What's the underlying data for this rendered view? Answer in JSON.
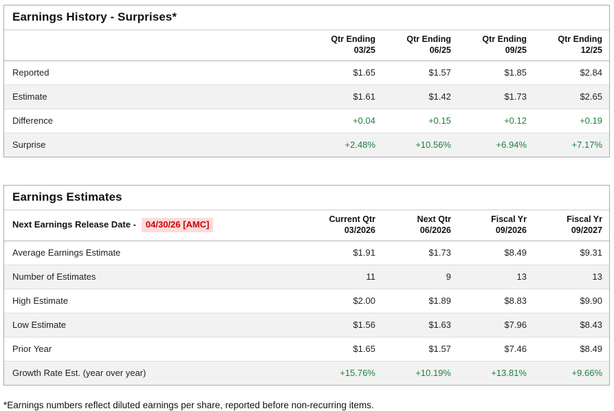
{
  "colors": {
    "positive_green": "#1e7e3e",
    "release_red": "#cc0000",
    "release_bg": "#fbdcdc",
    "alt_row_bg": "#f2f2f2",
    "panel_border": "#a9a9a9"
  },
  "earnings_history": {
    "title": "Earnings History - Surprises*",
    "columns": [
      {
        "line1": "Qtr Ending",
        "line2": "03/25"
      },
      {
        "line1": "Qtr Ending",
        "line2": "06/25"
      },
      {
        "line1": "Qtr Ending",
        "line2": "09/25"
      },
      {
        "line1": "Qtr Ending",
        "line2": "12/25"
      }
    ],
    "rows": [
      {
        "label": "Reported",
        "values": [
          "$1.65",
          "$1.57",
          "$1.85",
          "$2.84"
        ]
      },
      {
        "label": "Estimate",
        "values": [
          "$1.61",
          "$1.42",
          "$1.73",
          "$2.65"
        ]
      },
      {
        "label": "Difference",
        "values": [
          "+0.04",
          "+0.15",
          "+0.12",
          "+0.19"
        ]
      },
      {
        "label": "Surprise",
        "values": [
          "+2.48%",
          "+10.56%",
          "+6.94%",
          "+7.17%"
        ]
      }
    ]
  },
  "earnings_estimates": {
    "title": "Earnings Estimates",
    "release_label": "Next Earnings Release Date -",
    "release_date": "04/30/26 [AMC]",
    "columns": [
      {
        "line1": "Current Qtr",
        "line2": "03/2026"
      },
      {
        "line1": "Next Qtr",
        "line2": "06/2026"
      },
      {
        "line1": "Fiscal Yr",
        "line2": "09/2026"
      },
      {
        "line1": "Fiscal Yr",
        "line2": "09/2027"
      }
    ],
    "rows": [
      {
        "label": "Average Earnings Estimate",
        "values": [
          "$1.91",
          "$1.73",
          "$8.49",
          "$9.31"
        ]
      },
      {
        "label": "Number of Estimates",
        "values": [
          "11",
          "9",
          "13",
          "13"
        ]
      },
      {
        "label": "High Estimate",
        "values": [
          "$2.00",
          "$1.89",
          "$8.83",
          "$9.90"
        ]
      },
      {
        "label": "Low Estimate",
        "values": [
          "$1.56",
          "$1.63",
          "$7.96",
          "$8.43"
        ]
      },
      {
        "label": "Prior Year",
        "values": [
          "$1.65",
          "$1.57",
          "$7.46",
          "$8.49"
        ]
      },
      {
        "label": "Growth Rate Est. (year over year)",
        "values": [
          "+15.76%",
          "+10.19%",
          "+13.81%",
          "+9.66%"
        ]
      }
    ]
  },
  "footnote": "*Earnings numbers reflect diluted earnings per share, reported before non-recurring items."
}
